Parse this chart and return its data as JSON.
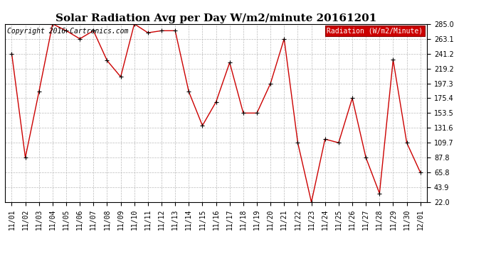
{
  "title": "Solar Radiation Avg per Day W/m2/minute 20161201",
  "copyright": "Copyright 2016 Cartronics.com",
  "legend_label": "Radiation (W/m2/Minute)",
  "dates": [
    "11/01",
    "11/02",
    "11/03",
    "11/04",
    "11/05",
    "11/06",
    "11/07",
    "11/08",
    "11/09",
    "11/10",
    "11/11",
    "11/12",
    "11/13",
    "11/14",
    "11/15",
    "11/16",
    "11/17",
    "11/18",
    "11/19",
    "11/20",
    "11/21",
    "11/22",
    "11/23",
    "11/24",
    "11/25",
    "11/26",
    "11/27",
    "11/28",
    "11/29",
    "11/30",
    "12/01"
  ],
  "values": [
    241.2,
    87.8,
    185.0,
    285.0,
    275.0,
    263.1,
    275.0,
    231.0,
    207.0,
    285.0,
    272.0,
    275.0,
    275.0,
    185.0,
    135.0,
    170.0,
    228.0,
    153.5,
    153.5,
    197.3,
    263.1,
    109.7,
    22.0,
    115.0,
    109.7,
    175.4,
    87.8,
    35.0,
    232.0,
    109.7,
    65.8
  ],
  "ylim": [
    22.0,
    285.0
  ],
  "yticks": [
    22.0,
    43.9,
    65.8,
    87.8,
    109.7,
    131.6,
    153.5,
    175.4,
    197.3,
    219.2,
    241.2,
    263.1,
    285.0
  ],
  "line_color": "#cc0000",
  "marker": "+",
  "marker_color": "#000000",
  "bg_color": "#ffffff",
  "grid_color": "#bbbbbb",
  "legend_bg": "#cc0000",
  "legend_text_color": "#ffffff",
  "title_fontsize": 11,
  "copyright_fontsize": 7,
  "tick_fontsize": 7,
  "legend_fontsize": 7
}
